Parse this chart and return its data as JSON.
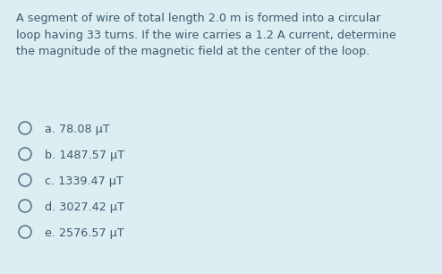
{
  "background_color": "#ddeef2",
  "question_text": "A segment of wire of total length 2.0 m is formed into a circular\nloop having 33 turns. If the wire carries a 1.2 A current, determine\nthe magnitude of the magnetic field at the center of the loop.",
  "options": [
    "a. 78.08 μT",
    "b. 1487.57 μT",
    "c. 1339.47 μT",
    "d. 3027.42 μT",
    "e. 2576.57 μT"
  ],
  "text_color": "#3a5a6e",
  "question_fontsize": 9.2,
  "option_fontsize": 9.2,
  "circle_color": "#5a7a8e"
}
